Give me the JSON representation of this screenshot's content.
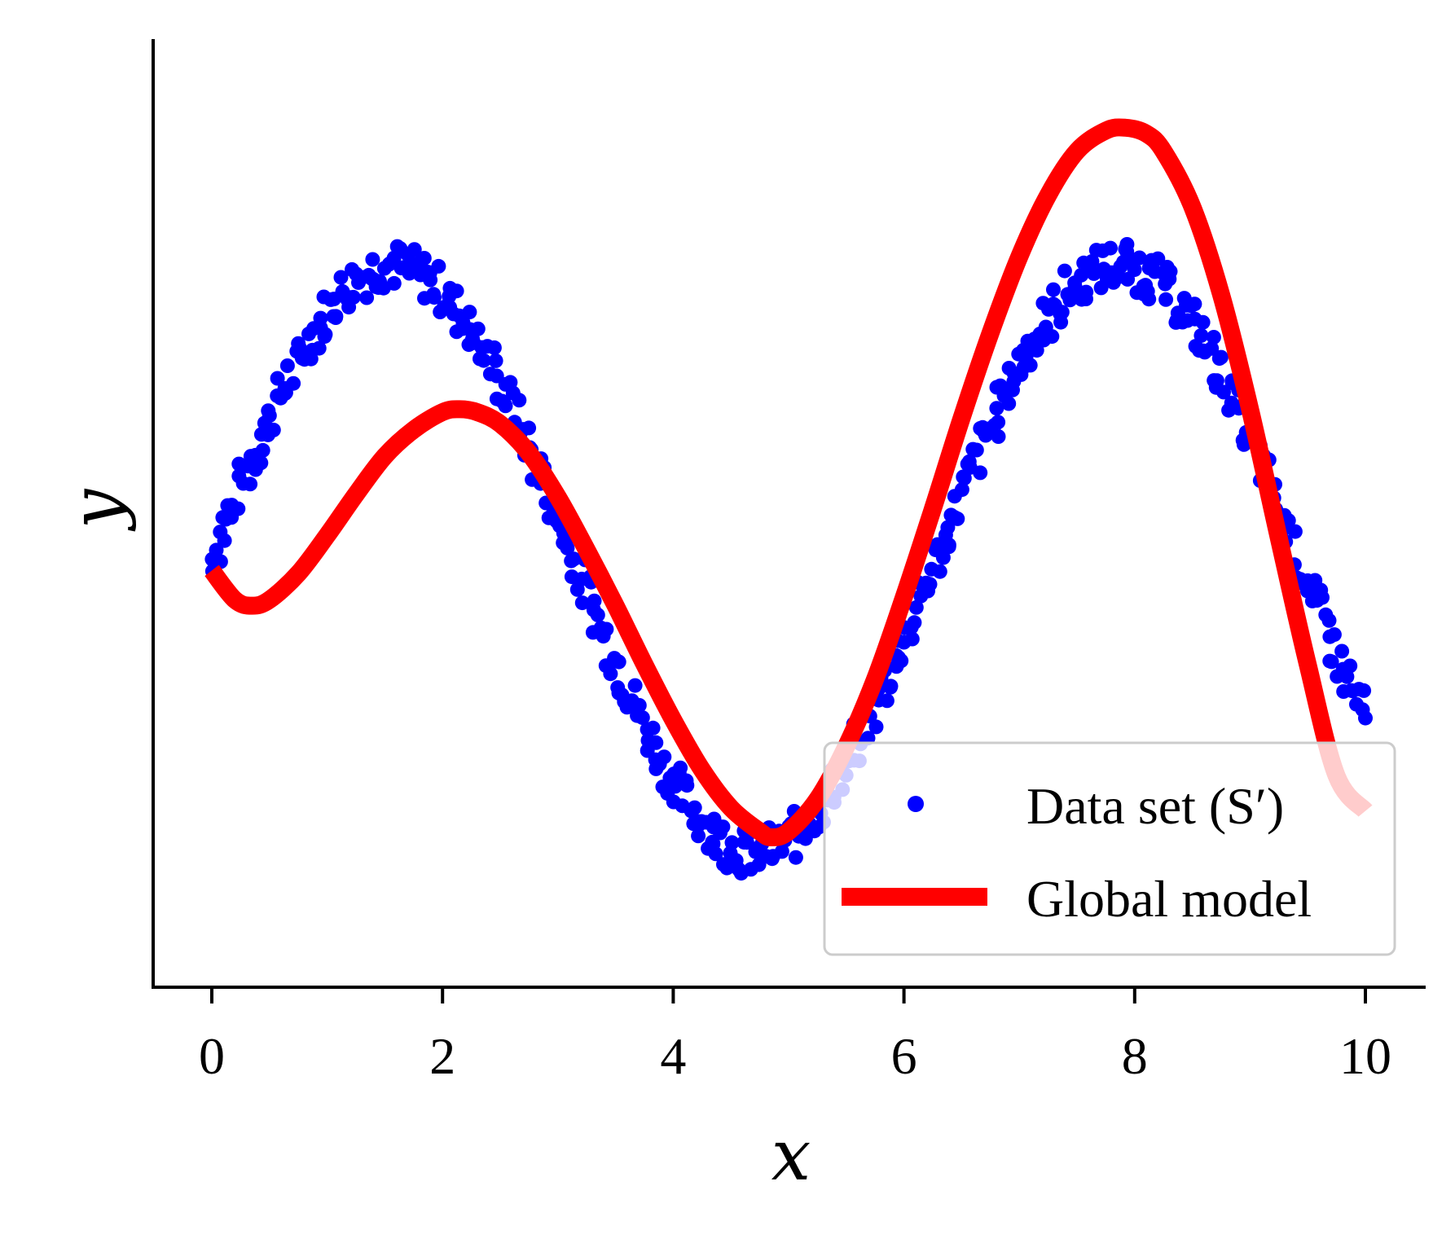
{
  "chart_data": {
    "type": "scatter",
    "title": "",
    "xlabel": "x",
    "ylabel": "y",
    "xlim": [
      -0.5,
      10.5
    ],
    "ylim": [
      -1.0,
      1.55
    ],
    "xticks": [
      0,
      2,
      4,
      6,
      8,
      10
    ],
    "xtick_labels": [
      "0",
      "2",
      "4",
      "6",
      "8",
      "10"
    ],
    "yticks_shown": false,
    "grid": false,
    "legend": {
      "placement": "lower-right",
      "entries": [
        {
          "label": "Data set (S′)",
          "marker": "dot",
          "color": "#0000ff"
        },
        {
          "label": "Global model",
          "marker": "line",
          "color": "#ff0000"
        }
      ]
    },
    "series": [
      {
        "name": "Data set (S′)",
        "kind": "scatter",
        "color": "#0000ff",
        "x": [
          0.0,
          0.1,
          0.2,
          0.3,
          0.4,
          0.5,
          0.6,
          0.7,
          0.8,
          0.9,
          1.0,
          1.1,
          1.2,
          1.3,
          1.4,
          1.5,
          1.6,
          1.7,
          1.8,
          1.9,
          2.0,
          2.1,
          2.2,
          2.3,
          2.4,
          2.5,
          2.6,
          2.7,
          2.8,
          2.9,
          3.0,
          3.1,
          3.2,
          3.3,
          3.4,
          3.5,
          3.6,
          3.7,
          3.8,
          3.9,
          4.0,
          4.1,
          4.2,
          4.3,
          4.4,
          4.5,
          4.6,
          4.7,
          4.8,
          4.9,
          5.0,
          5.1,
          5.2,
          5.3,
          5.4,
          5.5,
          5.6,
          5.7,
          5.8,
          5.9,
          6.0,
          6.1,
          6.2,
          6.3,
          6.4,
          6.5,
          6.6,
          6.7,
          6.8,
          6.9,
          7.0,
          7.1,
          7.2,
          7.3,
          7.4,
          7.5,
          7.6,
          7.7,
          7.8,
          7.9,
          8.0,
          8.1,
          8.2,
          8.3,
          8.4,
          8.5,
          8.6,
          8.7,
          8.8,
          8.9,
          9.0,
          9.1,
          9.2,
          9.3,
          9.4,
          9.5,
          9.6,
          9.7,
          9.8,
          9.9,
          10.0
        ],
        "y": [
          0.0,
          0.1,
          0.2,
          0.3,
          0.39,
          0.48,
          0.56,
          0.64,
          0.72,
          0.78,
          0.84,
          0.89,
          0.93,
          0.96,
          0.99,
          1.0,
          1.0,
          0.99,
          0.97,
          0.95,
          0.91,
          0.86,
          0.81,
          0.75,
          0.68,
          0.6,
          0.52,
          0.43,
          0.33,
          0.24,
          0.14,
          0.04,
          -0.06,
          -0.16,
          -0.26,
          -0.35,
          -0.44,
          -0.53,
          -0.61,
          -0.69,
          -0.76,
          -0.82,
          -0.87,
          -0.92,
          -0.95,
          -0.98,
          -1.0,
          -1.0,
          -1.0,
          -0.98,
          -0.96,
          -0.93,
          -0.88,
          -0.83,
          -0.77,
          -0.71,
          -0.63,
          -0.55,
          -0.46,
          -0.37,
          -0.28,
          -0.18,
          -0.08,
          0.02,
          0.12,
          0.22,
          0.31,
          0.41,
          0.49,
          0.58,
          0.66,
          0.73,
          0.79,
          0.85,
          0.9,
          0.94,
          0.97,
          0.99,
          1.0,
          1.0,
          0.99,
          0.97,
          0.95,
          0.91,
          0.86,
          0.8,
          0.74,
          0.67,
          0.59,
          0.5,
          0.41,
          0.32,
          0.22,
          0.12,
          0.02,
          -0.08,
          -0.17,
          -0.27,
          -0.37,
          -0.46,
          -0.54
        ]
      },
      {
        "name": "Global model",
        "kind": "line",
        "color": "#ff0000",
        "x": [
          0.0,
          0.2,
          0.35,
          0.5,
          0.75,
          1.0,
          1.25,
          1.5,
          1.75,
          2.0,
          2.15,
          2.3,
          2.5,
          2.75,
          3.0,
          3.25,
          3.5,
          3.75,
          4.0,
          4.25,
          4.5,
          4.75,
          4.85,
          5.0,
          5.25,
          5.5,
          5.75,
          6.0,
          6.25,
          6.5,
          6.75,
          7.0,
          7.25,
          7.5,
          7.75,
          7.92,
          8.1,
          8.25,
          8.5,
          8.75,
          9.0,
          9.25,
          9.5,
          9.75,
          10.0
        ],
        "y": [
          -0.04,
          -0.14,
          -0.16,
          -0.14,
          -0.05,
          0.08,
          0.22,
          0.35,
          0.44,
          0.5,
          0.51,
          0.5,
          0.46,
          0.36,
          0.21,
          0.03,
          -0.16,
          -0.36,
          -0.55,
          -0.72,
          -0.85,
          -0.93,
          -0.95,
          -0.93,
          -0.82,
          -0.64,
          -0.41,
          -0.13,
          0.17,
          0.48,
          0.77,
          1.03,
          1.24,
          1.39,
          1.46,
          1.47,
          1.45,
          1.39,
          1.2,
          0.9,
          0.51,
          0.07,
          -0.36,
          -0.74,
          -0.86
        ]
      }
    ]
  }
}
